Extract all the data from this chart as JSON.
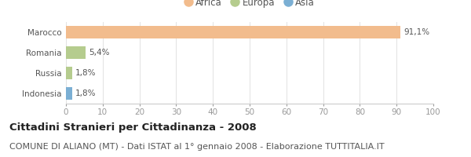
{
  "categories": [
    "Marocco",
    "Romania",
    "Russia",
    "Indonesia"
  ],
  "values": [
    91.1,
    5.4,
    1.8,
    1.8
  ],
  "labels": [
    "91,1%",
    "5,4%",
    "1,8%",
    "1,8%"
  ],
  "colors": [
    "#f2bc8d",
    "#b5cc8e",
    "#b5cc8e",
    "#7bafd4"
  ],
  "legend": [
    {
      "label": "Africa",
      "color": "#f2bc8d"
    },
    {
      "label": "Europa",
      "color": "#b5cc8e"
    },
    {
      "label": "Asia",
      "color": "#7bafd4"
    }
  ],
  "xlim": [
    0,
    100
  ],
  "xticks": [
    0,
    10,
    20,
    30,
    40,
    50,
    60,
    70,
    80,
    90,
    100
  ],
  "title": "Cittadini Stranieri per Cittadinanza - 2008",
  "subtitle": "COMUNE DI ALIANO (MT) - Dati ISTAT al 1° gennaio 2008 - Elaborazione TUTTITALIA.IT",
  "bg_color": "#ffffff",
  "bar_height": 0.6,
  "title_fontsize": 9.5,
  "subtitle_fontsize": 8,
  "tick_fontsize": 7.5,
  "label_fontsize": 7.5,
  "legend_fontsize": 8.5
}
